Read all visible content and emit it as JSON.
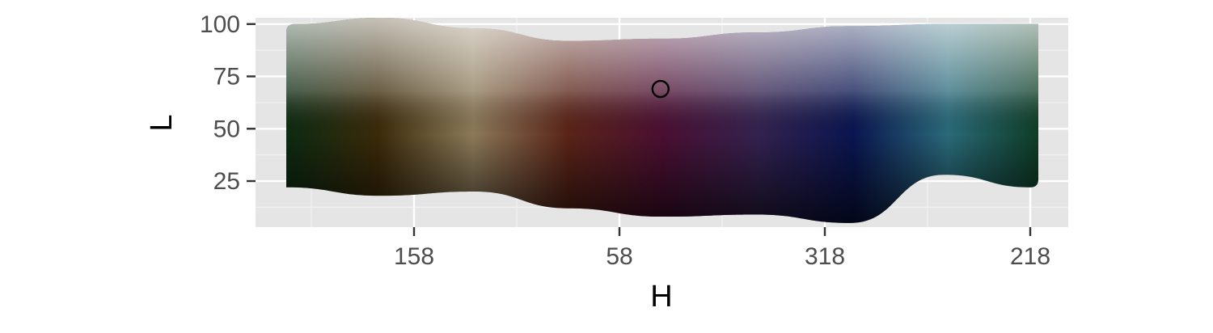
{
  "chart_data": {
    "type": "scatter",
    "title": "",
    "xlabel": "H",
    "ylabel": "L",
    "x_axis_kind": "hue-sequence",
    "x_ticks": [
      "158",
      "58",
      "318",
      "218"
    ],
    "y_ticks": [
      25,
      50,
      75,
      100
    ],
    "ylim": [
      3,
      103
    ],
    "grid": true,
    "panel_background": "#e5e5e5",
    "band_gradient_hexes": [
      "#0b2a12",
      "#3b2a0a",
      "#8c7a5a",
      "#5a2418",
      "#4b0f32",
      "#33224f",
      "#0a1550",
      "#2a6a7a",
      "#0d3b22"
    ],
    "band_top_L": [
      100,
      103,
      98,
      92,
      93,
      96,
      99,
      100,
      100
    ],
    "band_bottom_L": [
      22,
      18,
      20,
      12,
      8,
      9,
      5,
      28,
      22
    ],
    "points": [
      {
        "H": "between 58 and 318, nearer 58",
        "L": 69,
        "marker": "open-circle"
      }
    ]
  }
}
